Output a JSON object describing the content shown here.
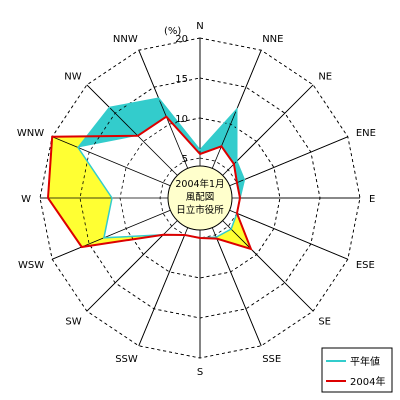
{
  "chart_data": {
    "type": "radar",
    "unit_label": "(%)",
    "directions": [
      "N",
      "NNE",
      "NE",
      "ENE",
      "E",
      "ESE",
      "SE",
      "SSE",
      "S",
      "SSW",
      "SW",
      "WSW",
      "W",
      "WNW",
      "NW",
      "NNW"
    ],
    "r_ticks": [
      0,
      5,
      10,
      15,
      20
    ],
    "r_max": 20,
    "calm_radius": 4,
    "center_lines": [
      "2004年1月",
      "風配図",
      "日立市役所"
    ],
    "series": [
      {
        "name": "平年値",
        "color": "#33cccc",
        "values": [
          6.0,
          12.0,
          6.5,
          6.0,
          5.0,
          5.0,
          5.5,
          5.3,
          5.0,
          5.0,
          6.5,
          13.0,
          11.0,
          16.5,
          16.0,
          13.5
        ]
      },
      {
        "name": "2004年",
        "color": "#dd0000",
        "values": [
          5.5,
          7.0,
          6.0,
          5.0,
          5.0,
          5.0,
          9.0,
          5.5,
          5.0,
          5.0,
          6.5,
          16.0,
          19.0,
          20.0,
          11.0,
          11.0
        ]
      }
    ],
    "fill_between": "#ffff33",
    "legend_position": "bottom-right"
  }
}
